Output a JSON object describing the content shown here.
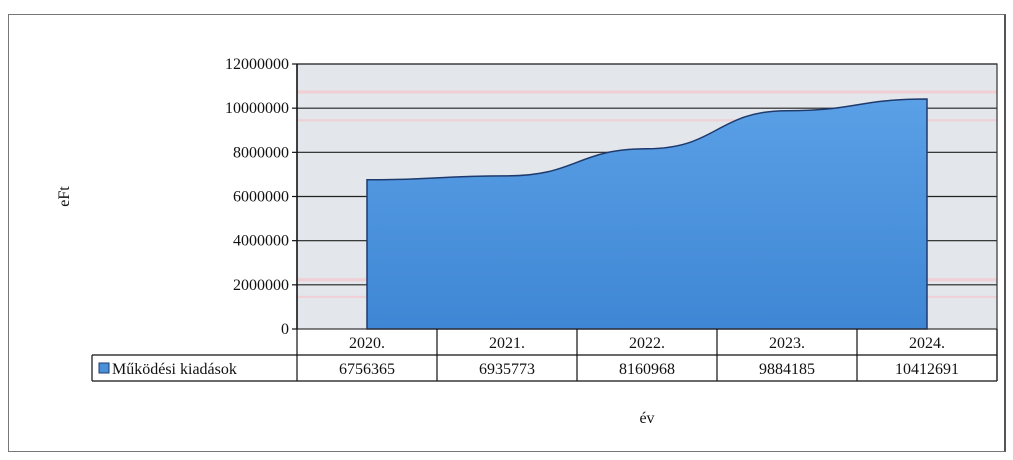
{
  "chart_data": {
    "type": "area",
    "categories": [
      "2020.",
      "2021.",
      "2022.",
      "2023.",
      "2024."
    ],
    "series": [
      {
        "name": "Működési kiadások",
        "values": [
          6756365,
          6935773,
          8160968,
          9884185,
          10412691
        ],
        "color": "#4a90d9"
      }
    ],
    "y_tick_labels": [
      "0",
      "2000000",
      "4000000",
      "6000000",
      "8000000",
      "10000000",
      "12000000"
    ],
    "ylim": [
      0,
      12000000
    ],
    "ylabel": "eFt",
    "xlabel": "év",
    "grid": true,
    "data_table": true,
    "legend_label": "Működési kiadások",
    "value_labels": [
      "6756365",
      "6935773",
      "8160968",
      "9884185",
      "10412691"
    ]
  },
  "colors": {
    "plot_bg": "#e3e6ea",
    "area_fill": "#4a90d9",
    "area_stroke": "#1f3a6e",
    "grid": "#222222"
  }
}
